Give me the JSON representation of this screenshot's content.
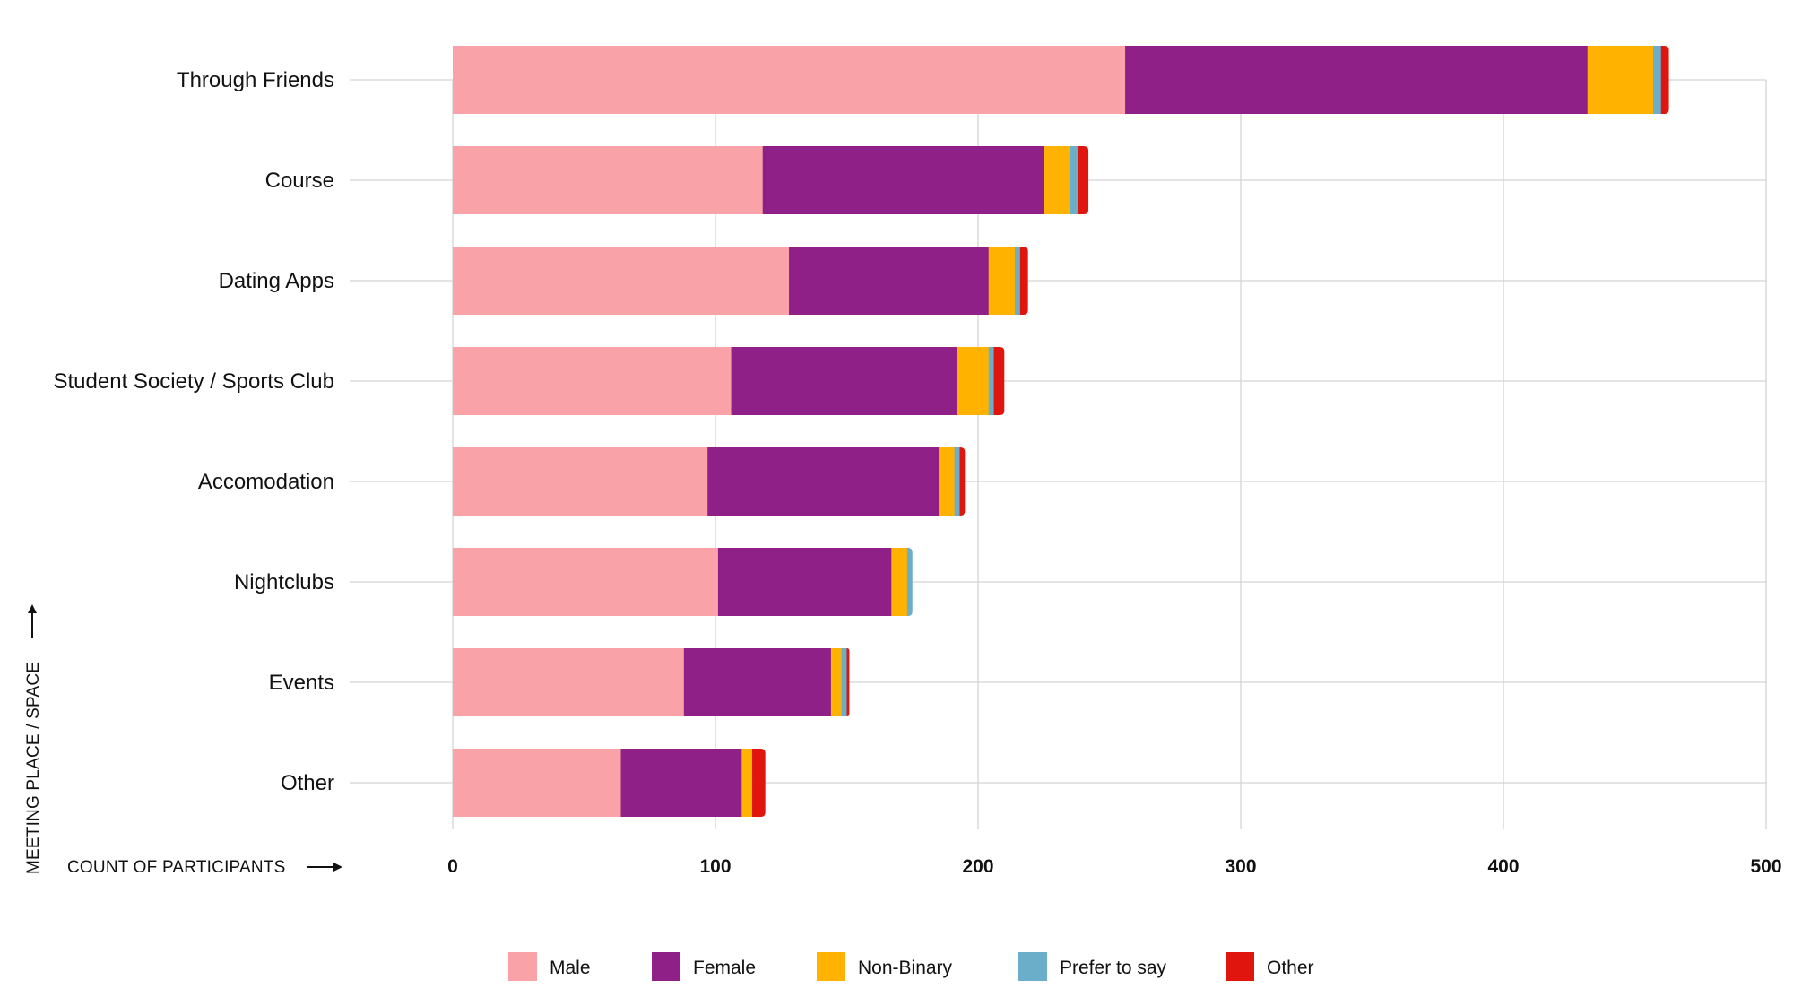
{
  "chart_data": {
    "type": "bar",
    "orientation": "horizontal",
    "stacked": true,
    "categories": [
      "Through Friends",
      "Course",
      "Dating Apps",
      "Student Society / Sports Club",
      "Accomodation",
      "Nightclubs",
      "Events",
      "Other"
    ],
    "series": [
      {
        "name": "Male",
        "color": "#F9A3A8",
        "values": [
          256,
          118,
          128,
          106,
          97,
          101,
          88,
          64
        ]
      },
      {
        "name": "Female",
        "color": "#8E2088",
        "values": [
          176,
          107,
          76,
          86,
          88,
          66,
          56,
          46
        ]
      },
      {
        "name": "Non-Binary",
        "color": "#FFB300",
        "values": [
          25,
          10,
          10,
          12,
          6,
          6,
          4,
          4
        ]
      },
      {
        "name": "Prefer to say",
        "color": "#6AAEC9",
        "values": [
          3,
          3,
          2,
          2,
          2,
          2,
          2,
          0
        ]
      },
      {
        "name": "Other",
        "color": "#E0160E",
        "values": [
          3,
          4,
          3,
          4,
          2,
          0,
          1,
          5
        ]
      }
    ],
    "xlabel": "COUNT OF PARTICIPANTS",
    "ylabel": "MEETING PLACE / SPACE",
    "xlim": [
      0,
      500
    ],
    "xticks": [
      0,
      100,
      200,
      300,
      400,
      500
    ],
    "xtick_labels": [
      "0",
      "100",
      "200",
      "300",
      "400",
      "500"
    ],
    "grid": true,
    "legend_position": "bottom-center"
  }
}
